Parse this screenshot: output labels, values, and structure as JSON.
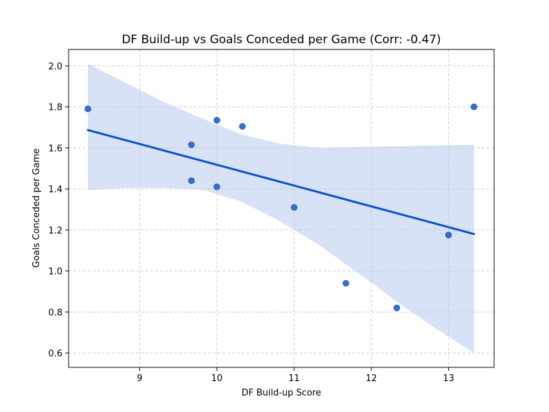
{
  "chart_data": {
    "type": "scatter",
    "title": "DF Build-up vs Goals Conceded per Game (Corr: -0.47)",
    "xlabel": "DF Build-up Score",
    "ylabel": "Goals Conceded per Game",
    "xlim": [
      8.08,
      13.59
    ],
    "ylim": [
      0.53,
      2.08
    ],
    "xticks": [
      9,
      10,
      11,
      12,
      13
    ],
    "xtick_labels": [
      "9",
      "10",
      "11",
      "12",
      "13"
    ],
    "yticks": [
      0.6,
      0.8,
      1.0,
      1.2,
      1.4,
      1.6,
      1.8,
      2.0
    ],
    "ytick_labels": [
      "0.6",
      "0.8",
      "1.0",
      "1.2",
      "1.4",
      "1.6",
      "1.8",
      "2.0"
    ],
    "grid": true,
    "points": [
      {
        "x": 8.33,
        "y": 1.79
      },
      {
        "x": 9.67,
        "y": 1.615
      },
      {
        "x": 9.67,
        "y": 1.44
      },
      {
        "x": 10.0,
        "y": 1.735
      },
      {
        "x": 10.0,
        "y": 1.41
      },
      {
        "x": 10.33,
        "y": 1.705
      },
      {
        "x": 11.0,
        "y": 1.31
      },
      {
        "x": 11.67,
        "y": 0.94
      },
      {
        "x": 12.33,
        "y": 0.82
      },
      {
        "x": 13.0,
        "y": 1.175
      },
      {
        "x": 13.33,
        "y": 1.8
      }
    ],
    "regression": {
      "x": [
        8.33,
        13.33
      ],
      "y": [
        1.687,
        1.18
      ]
    },
    "ci_band": {
      "x": [
        8.33,
        8.83,
        9.33,
        9.83,
        10.33,
        10.83,
        11.33,
        11.83,
        12.33,
        12.83,
        13.33
      ],
      "lower": [
        1.395,
        1.405,
        1.405,
        1.395,
        1.335,
        1.24,
        1.125,
        0.99,
        0.85,
        0.72,
        0.6
      ],
      "upper": [
        2.01,
        1.915,
        1.82,
        1.74,
        1.665,
        1.62,
        1.6,
        1.605,
        1.608,
        1.612,
        1.615
      ]
    },
    "colors": {
      "point": "#2a66c8",
      "line": "#0b52cc",
      "band": "#cad8f3"
    }
  }
}
